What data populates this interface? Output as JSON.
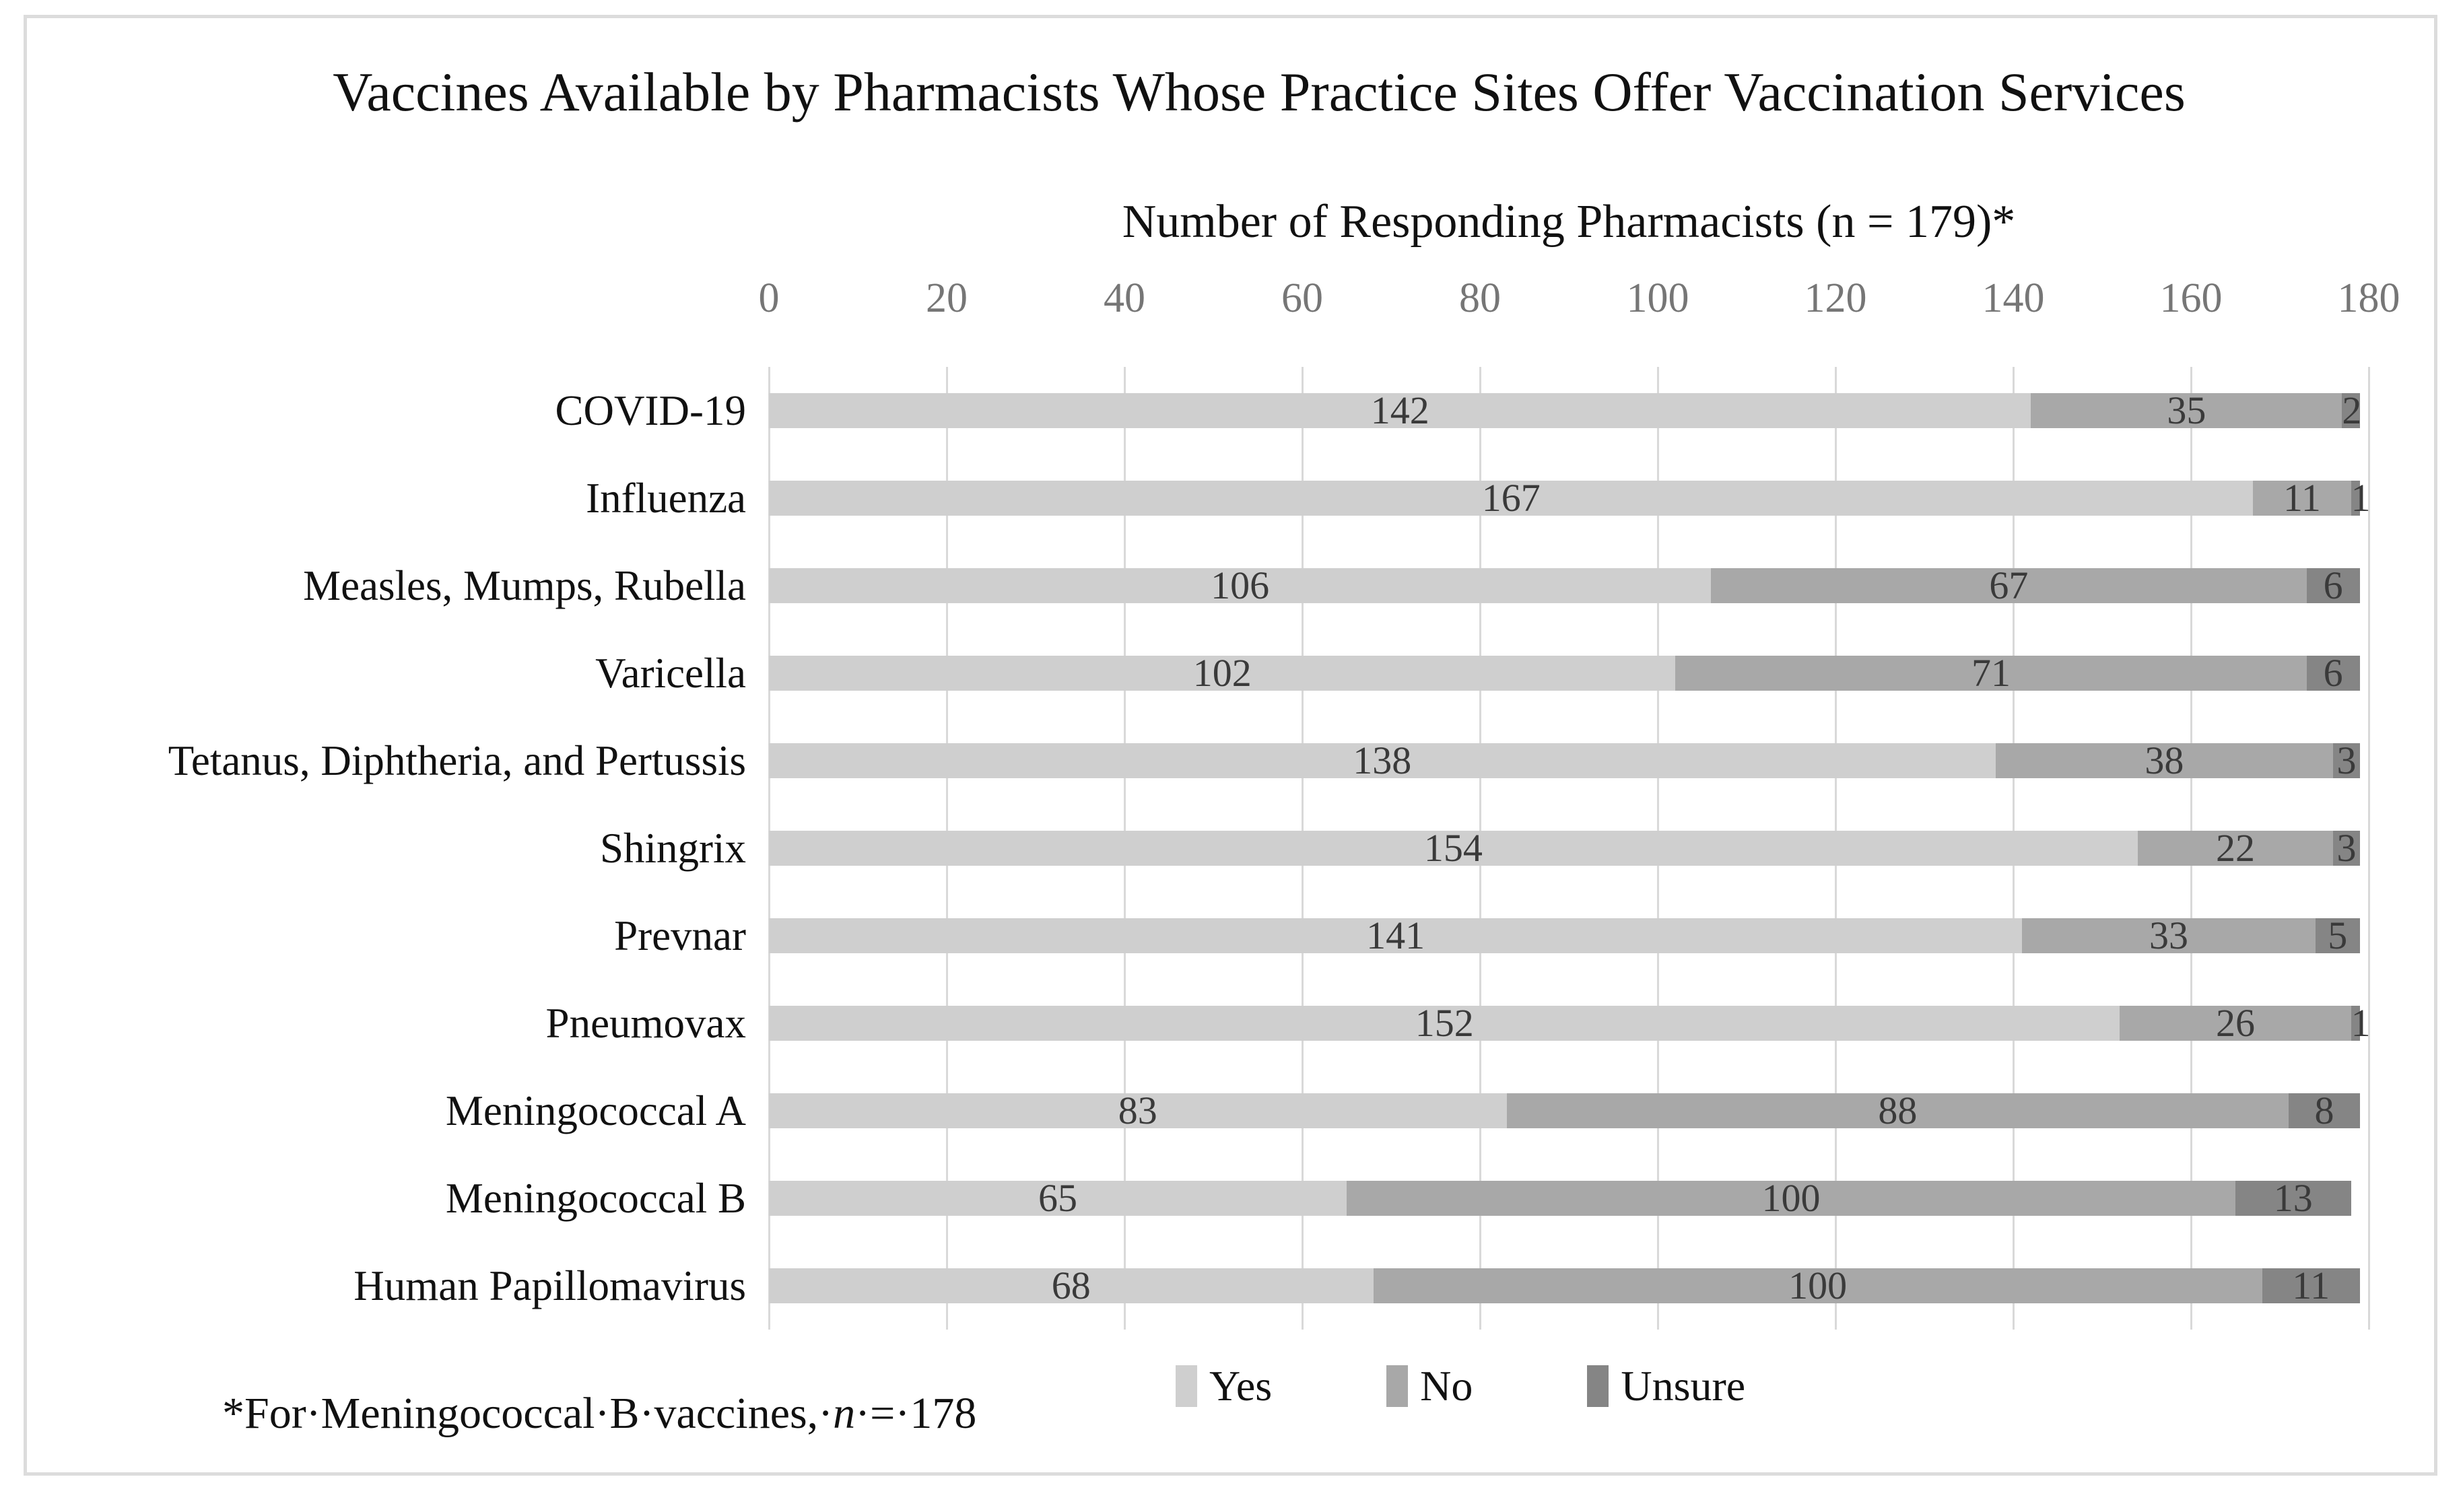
{
  "chart_data": {
    "type": "bar",
    "orientation": "horizontal",
    "stacked": true,
    "title": "Vaccines Available by Pharmacists Whose Practice Sites Offer Vaccination Services",
    "xlabel": "Number of Responding Pharmacists (n = 179)*",
    "xlim": [
      0,
      180
    ],
    "xticks": [
      0,
      20,
      40,
      60,
      80,
      100,
      120,
      140,
      160,
      180
    ],
    "grid": "vertical-only",
    "legend_position": "bottom-center",
    "categories": [
      "COVID-19",
      "Influenza",
      "Measles, Mumps, Rubella",
      "Varicella",
      "Tetanus, Diphtheria, and Pertussis",
      "Shingrix",
      "Prevnar",
      "Pneumovax",
      "Meningococcal A",
      "Meningococcal B",
      "Human Papillomavirus"
    ],
    "series": [
      {
        "name": "Yes",
        "color": "#cfcfcf",
        "values": [
          142,
          167,
          106,
          102,
          138,
          154,
          141,
          152,
          83,
          65,
          68
        ]
      },
      {
        "name": "No",
        "color": "#a8a8a8",
        "values": [
          35,
          11,
          67,
          71,
          38,
          22,
          33,
          26,
          88,
          100,
          100
        ]
      },
      {
        "name": "Unsure",
        "color": "#858585",
        "values": [
          2,
          1,
          6,
          6,
          3,
          3,
          5,
          1,
          8,
          13,
          11
        ]
      }
    ],
    "footnote": {
      "prefix": "*For·Meningococcal·B·vaccines,·",
      "italic": "n",
      "suffix": "·=·178"
    },
    "colors": {
      "gridline": "#d9d9d9",
      "tick_text": "#767676",
      "value_label": "#3a3a3a",
      "border": "#dcdcdc",
      "background": "#ffffff"
    }
  }
}
